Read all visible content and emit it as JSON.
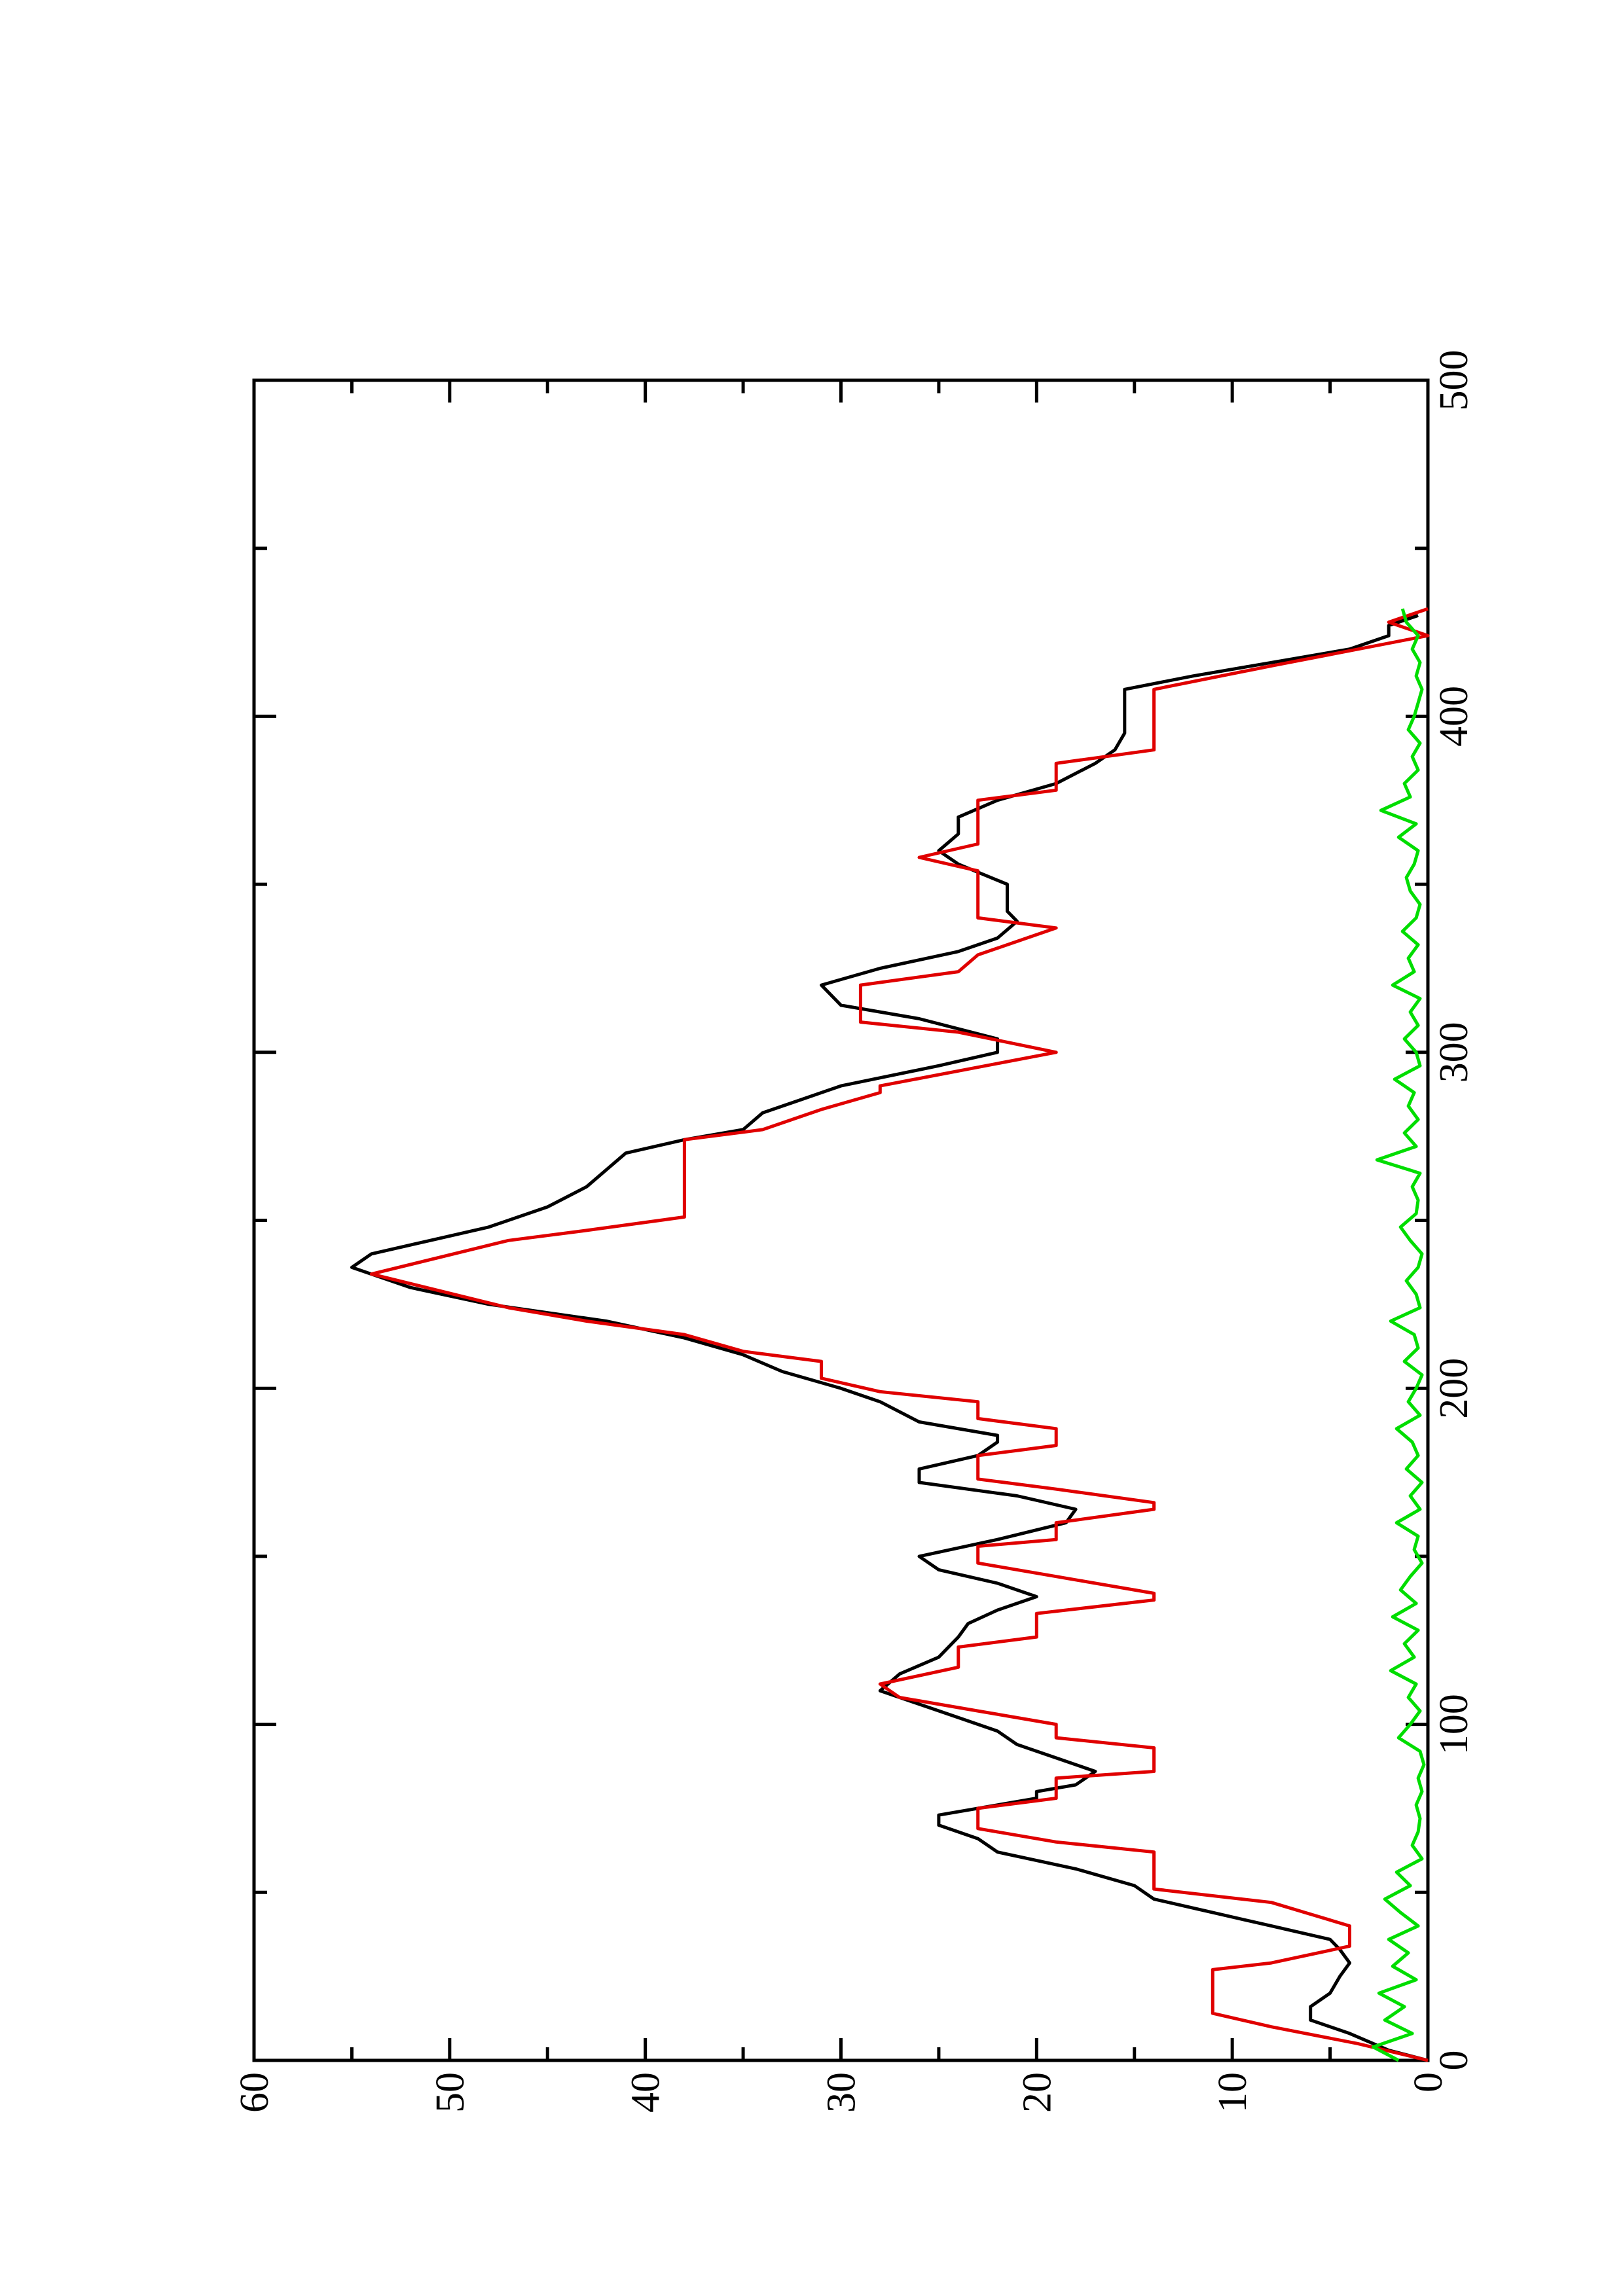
{
  "chart_data": {
    "type": "line",
    "xlim": [
      0,
      500
    ],
    "ylim": [
      0,
      60
    ],
    "xticks": [
      0,
      100,
      200,
      300,
      400,
      500
    ],
    "yticks": [
      0,
      10,
      20,
      30,
      40,
      50,
      60
    ],
    "xminorticks": [
      50,
      150,
      250,
      350,
      450
    ],
    "yminorticks": [
      5,
      15,
      25,
      35,
      45,
      55
    ],
    "series": [
      {
        "color": "#000000",
        "x": [
          0,
          3,
          8,
          12,
          16,
          20,
          25,
          29,
          33,
          36,
          40,
          44,
          48,
          52,
          57,
          62,
          66,
          70,
          73,
          78,
          80,
          82,
          86,
          90,
          94,
          98,
          102,
          106,
          110,
          115,
          120,
          126,
          130,
          134,
          138,
          142,
          146,
          150,
          155,
          160,
          164,
          168,
          172,
          176,
          180,
          184,
          186,
          190,
          196,
          200,
          205,
          210,
          215,
          220,
          225,
          230,
          236,
          240,
          244,
          248,
          254,
          260,
          265,
          270,
          274,
          277,
          282,
          286,
          290,
          296,
          300,
          304,
          307,
          310,
          314,
          320,
          325,
          330,
          334,
          339,
          342,
          350,
          356,
          360,
          365,
          370,
          375,
          380,
          386,
          390,
          395,
          408,
          412,
          416,
          420,
          424,
          427,
          430
        ],
        "values": [
          0,
          2,
          4,
          6,
          6,
          5,
          4.5,
          4,
          4.5,
          5,
          8,
          11,
          14,
          15,
          18,
          22,
          23,
          25,
          25,
          20,
          20,
          18,
          17,
          19,
          21,
          22,
          24,
          26,
          28,
          27,
          25,
          24,
          23.5,
          22,
          20,
          22,
          25,
          26,
          22,
          18.5,
          18,
          21,
          26,
          26,
          23,
          22,
          22,
          26,
          28,
          30,
          33,
          35,
          38,
          42,
          48,
          52,
          55,
          54,
          51,
          48,
          45,
          43,
          42,
          41,
          38,
          35,
          34,
          32,
          30,
          25,
          22,
          22,
          24,
          26,
          30,
          31,
          28,
          24,
          22,
          21,
          21.5,
          21.5,
          24,
          25,
          24,
          24,
          22,
          19,
          17,
          16,
          15.5,
          15.5,
          12,
          8,
          4,
          2,
          2,
          0.5
        ]
      },
      {
        "color": "#e00000",
        "x": [
          0,
          5,
          10,
          14,
          27,
          29,
          34,
          40,
          47,
          51,
          62,
          65,
          69,
          75,
          78,
          84,
          86,
          93,
          96,
          100,
          104,
          108,
          112,
          117,
          123,
          126,
          133,
          137,
          139,
          144,
          148,
          153,
          155,
          160,
          164,
          166,
          170,
          173,
          180,
          183,
          188,
          191,
          196,
          199,
          203,
          208,
          211,
          216,
          220,
          224,
          234,
          244,
          247,
          251,
          274,
          277,
          283,
          288,
          290,
          300,
          306,
          309,
          320,
          324,
          329,
          337,
          340,
          354,
          358,
          362,
          375,
          378,
          386,
          390,
          408,
          415,
          424,
          428,
          432
        ],
        "values": [
          0,
          3.6,
          8,
          11,
          11,
          8,
          4,
          4,
          8,
          14,
          14,
          19,
          23,
          23,
          19,
          19,
          14,
          14,
          19,
          19,
          23,
          27,
          28,
          24,
          24,
          20,
          20,
          14,
          14,
          19,
          23,
          23,
          19,
          19,
          14,
          14,
          19,
          23,
          23,
          19,
          19,
          23,
          23,
          28,
          31,
          31,
          35,
          38,
          43,
          47,
          54,
          47,
          43,
          38,
          38,
          34,
          31,
          28,
          28,
          19,
          24,
          29,
          29,
          24,
          23,
          19,
          23,
          23,
          26,
          23,
          23,
          19,
          19,
          14,
          14,
          8,
          0,
          2,
          0
        ]
      },
      {
        "color": "#00dd00",
        "x": [
          0,
          4,
          8,
          12,
          16,
          20,
          24,
          28,
          32,
          36,
          40,
          44,
          48,
          52,
          56,
          60,
          64,
          68,
          72,
          76,
          80,
          84,
          88,
          92,
          96,
          100,
          104,
          108,
          112,
          116,
          120,
          124,
          128,
          132,
          136,
          140,
          144,
          148,
          152,
          156,
          160,
          164,
          168,
          172,
          176,
          180,
          184,
          188,
          192,
          196,
          200,
          204,
          208,
          212,
          216,
          220,
          224,
          228,
          232,
          236,
          240,
          244,
          248,
          252,
          256,
          260,
          264,
          268,
          272,
          276,
          280,
          284,
          288,
          292,
          296,
          300,
          304,
          308,
          312,
          316,
          320,
          324,
          328,
          332,
          336,
          340,
          344,
          348,
          352,
          356,
          360,
          364,
          368,
          372,
          376,
          380,
          384,
          388,
          392,
          396,
          400,
          404,
          408,
          412,
          416,
          420,
          424,
          428,
          432
        ],
        "values": [
          1.5,
          2.8,
          0.8,
          2.2,
          1.2,
          2.5,
          0.6,
          1.8,
          1.0,
          2.0,
          0.5,
          1.4,
          2.2,
          0.9,
          1.6,
          0.3,
          0.8,
          0.5,
          0.4,
          0.6,
          0.3,
          0.5,
          0.2,
          0.4,
          1.5,
          0.9,
          0.4,
          1.0,
          0.6,
          1.9,
          0.7,
          1.2,
          0.5,
          1.8,
          0.6,
          1.4,
          0.9,
          0.3,
          0.7,
          0.5,
          1.6,
          0.4,
          0.9,
          0.3,
          1.1,
          0.5,
          0.8,
          1.6,
          0.4,
          1.0,
          0.6,
          0.3,
          1.2,
          0.5,
          0.7,
          1.9,
          0.4,
          0.6,
          1.1,
          0.5,
          0.3,
          0.9,
          1.4,
          0.6,
          0.5,
          0.8,
          0.4,
          2.6,
          0.6,
          1.2,
          0.5,
          1.0,
          0.7,
          1.7,
          0.4,
          0.6,
          1.2,
          0.5,
          0.9,
          0.4,
          1.8,
          0.7,
          1.0,
          0.5,
          1.3,
          0.6,
          0.4,
          0.9,
          1.1,
          0.7,
          0.5,
          1.5,
          0.6,
          2.4,
          0.9,
          1.2,
          0.5,
          0.8,
          0.4,
          1.0,
          0.7,
          0.5,
          0.3,
          0.6,
          0.4,
          0.8,
          0.5,
          1.1,
          1.3
        ]
      }
    ]
  }
}
